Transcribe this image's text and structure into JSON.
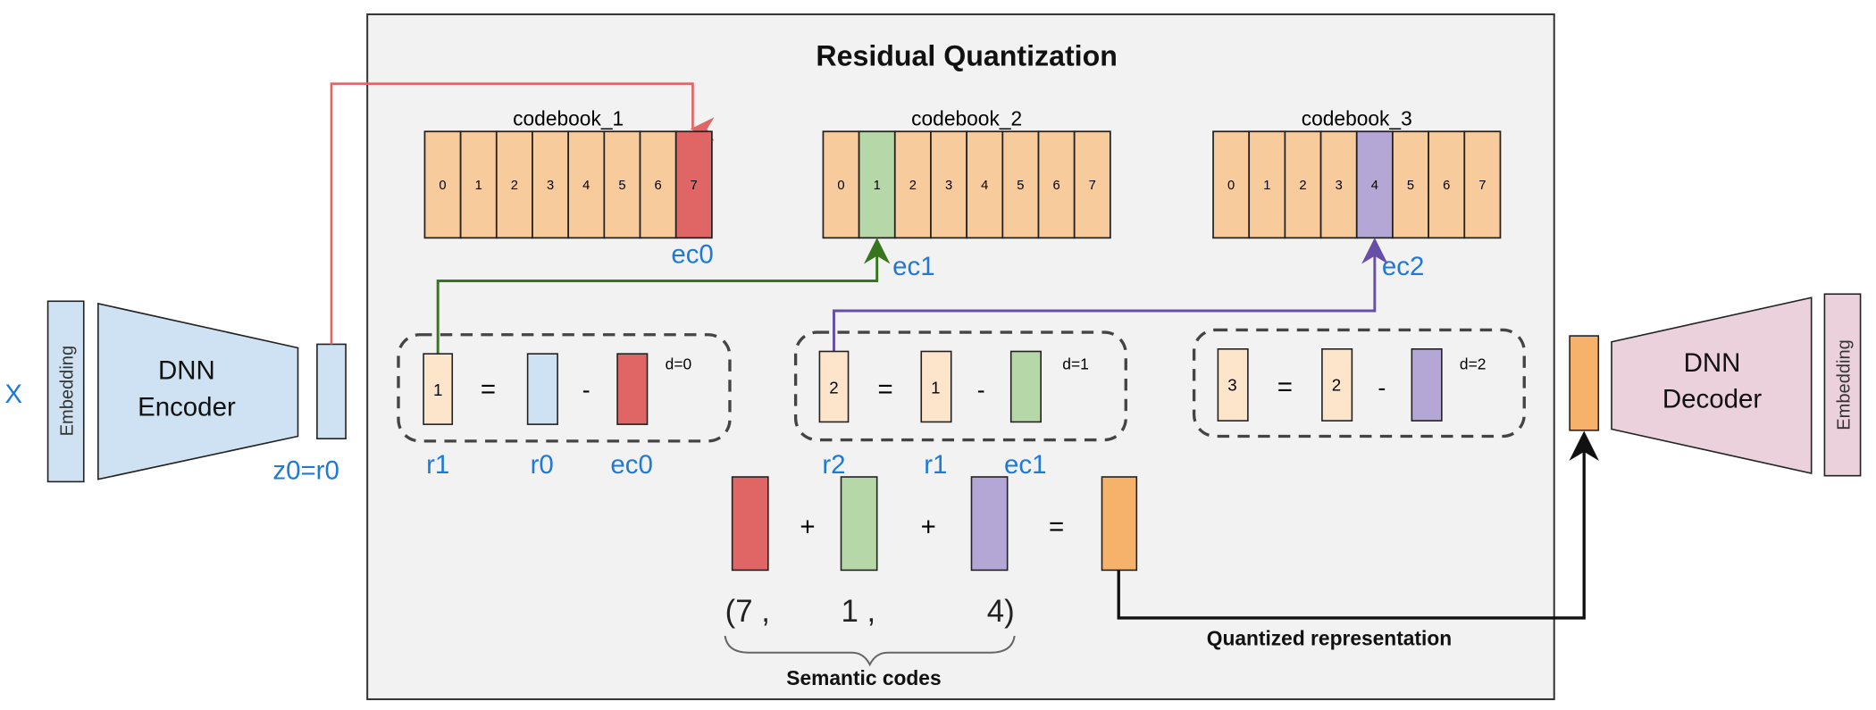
{
  "title": "Residual Quantization",
  "input_label": "X",
  "encoder": {
    "embedding": "Embedding",
    "line1": "DNN",
    "line2": "Encoder",
    "output_label": "z0=r0"
  },
  "decoder": {
    "embedding": "Embedding",
    "line1": "DNN",
    "line2": "Decoder"
  },
  "codebooks": [
    {
      "label": "codebook_1",
      "entries": [
        "0",
        "1",
        "2",
        "3",
        "4",
        "5",
        "6",
        "7"
      ],
      "selected": 7,
      "color": "#e06666",
      "code_label": "ec0"
    },
    {
      "label": "codebook_2",
      "entries": [
        "0",
        "1",
        "2",
        "3",
        "4",
        "5",
        "6",
        "7"
      ],
      "selected": 1,
      "color": "#b6d7a8",
      "code_label": "ec1"
    },
    {
      "label": "codebook_3",
      "entries": [
        "0",
        "1",
        "2",
        "3",
        "4",
        "5",
        "6",
        "7"
      ],
      "selected": 4,
      "color": "#b4a7d6",
      "code_label": "ec2"
    }
  ],
  "steps": [
    {
      "result": "1",
      "input": "",
      "depth": "d=0",
      "labels": [
        "r1",
        "r0",
        "ec0"
      ]
    },
    {
      "result": "2",
      "input": "1",
      "depth": "d=1",
      "labels": [
        "r2",
        "r1",
        "ec1"
      ]
    },
    {
      "result": "3",
      "input": "2",
      "depth": "d=2"
    }
  ],
  "operators": {
    "equals": "=",
    "minus": "-",
    "plus": "+"
  },
  "semantic_codes": {
    "open": "(7 ,",
    "mid": "1 ,",
    "close": "4)",
    "label": "Semantic codes"
  },
  "quantized_label": "Quantized representation",
  "colors": {
    "codebook_cell": "#f8cb9c",
    "residual": "#fde5cc",
    "encoder": "#cfe2f3",
    "decoder": "#ead1dc",
    "quantized": "#f6b26b",
    "label_blue": "#1f7ad6",
    "line_red": "#e06666",
    "line_green": "#38761d",
    "line_purple": "#674ea7"
  }
}
